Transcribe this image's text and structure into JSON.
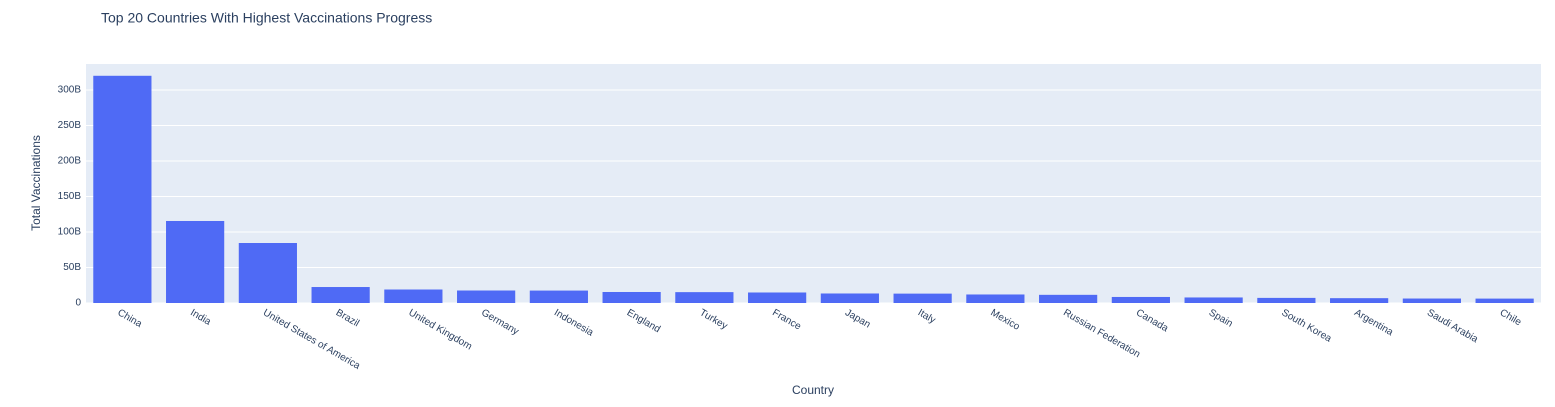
{
  "chart_data": {
    "type": "bar",
    "title": "Top 20 Countries With Highest Vaccinations Progress",
    "x_label": "Country",
    "y_label": "Total Vaccinations",
    "categories": [
      "China",
      "India",
      "United States of America",
      "Brazil",
      "United Kingdom",
      "Germany",
      "Indonesia",
      "England",
      "Turkey",
      "France",
      "Japan",
      "Italy",
      "Mexico",
      "Russian Federation",
      "Canada",
      "Spain",
      "South Korea",
      "Argentina",
      "Saudi Arabia",
      "Chile"
    ],
    "values": [
      320000000000,
      115500000000,
      84500000000,
      22500000000,
      19000000000,
      17600000000,
      17500000000,
      15500000000,
      15300000000,
      14800000000,
      13400000000,
      13200000000,
      12000000000,
      11500000000,
      8500000000,
      7800000000,
      7200000000,
      6800000000,
      6300000000,
      6200000000
    ],
    "color": "#4f6af5",
    "ylim": [
      0,
      336600000000
    ],
    "yticks": [
      0,
      {
        "value": 50000000000,
        "label": "50B"
      },
      {
        "value": 100000000000,
        "label": "100B"
      },
      {
        "value": 150000000000,
        "label": "150B"
      },
      {
        "value": 200000000000,
        "label": "200B"
      },
      {
        "value": 250000000000,
        "label": "250B"
      },
      {
        "value": 300000000000,
        "label": "300B"
      }
    ],
    "grid": true
  }
}
